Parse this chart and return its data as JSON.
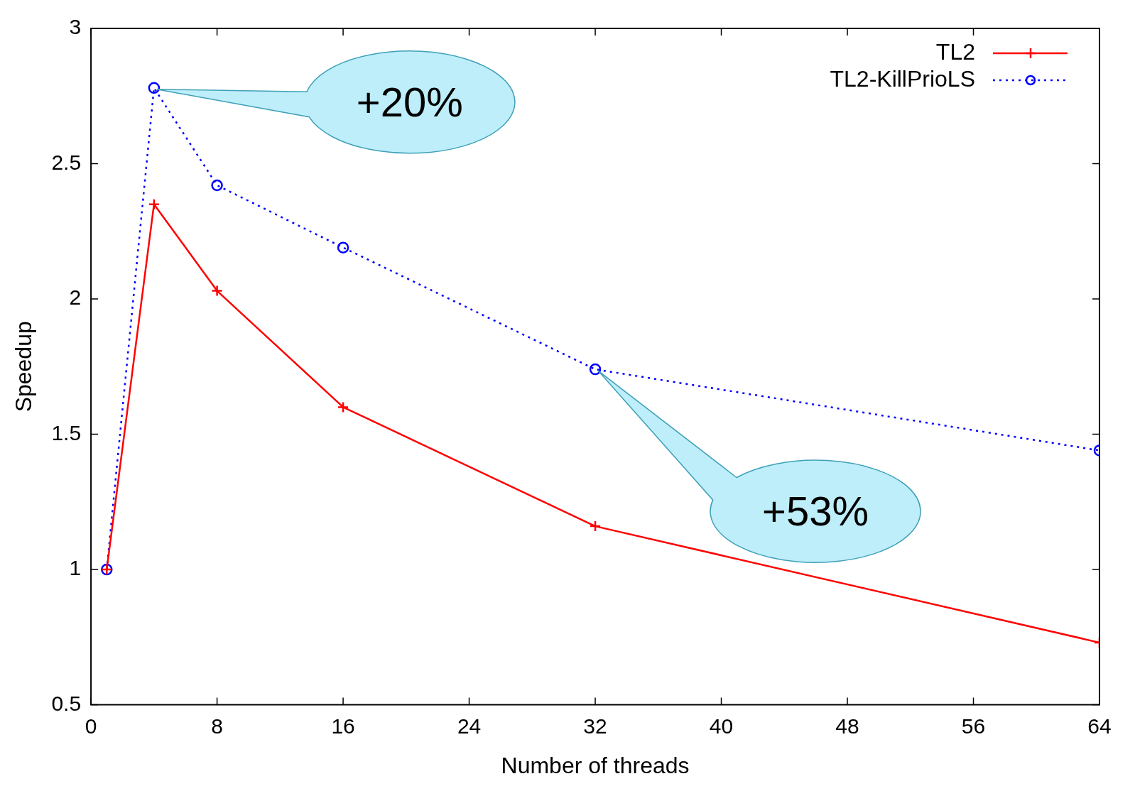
{
  "chart_data": {
    "type": "line",
    "xlabel": "Number of threads",
    "ylabel": "Speedup",
    "x": [
      1,
      4,
      8,
      16,
      32,
      64
    ],
    "series": [
      {
        "name": "TL2",
        "color": "#ff0000",
        "values": [
          1.0,
          2.35,
          2.03,
          1.6,
          1.16,
          0.73
        ],
        "marker": "cross",
        "line_style": "solid"
      },
      {
        "name": "TL2-KillPrioLS",
        "color": "#0000ff",
        "values": [
          1.0,
          2.78,
          2.42,
          2.19,
          1.74,
          1.44
        ],
        "marker": "circle",
        "line_style": "dotted"
      }
    ],
    "xlim": [
      0,
      64
    ],
    "xticks": [
      0,
      8,
      16,
      24,
      32,
      40,
      48,
      56,
      64
    ],
    "ylim": [
      0.5,
      3
    ],
    "yticks": [
      0.5,
      1,
      1.5,
      2,
      2.5,
      3
    ],
    "grid": false,
    "legend": "top right",
    "annotations": [
      {
        "text": "+20%",
        "x": 4,
        "y": 2.78
      },
      "+53%"
    ]
  }
}
